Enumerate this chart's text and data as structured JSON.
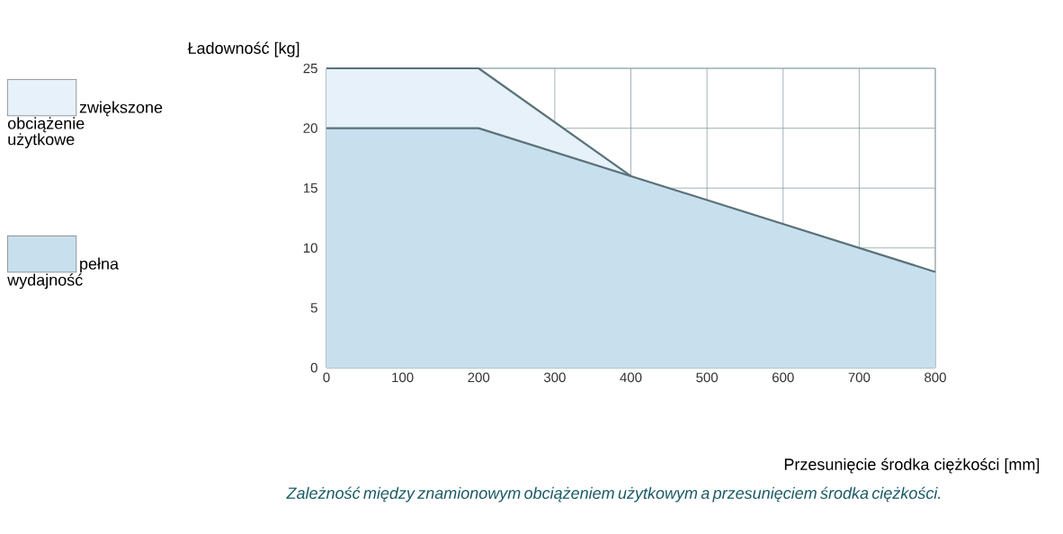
{
  "chart_data": {
    "type": "area",
    "ylabel": "Ładowność [kg]",
    "xlabel": "Przesunięcie środka ciężkości [mm]",
    "annotations": [
      "*Zależność między znamionowym obciążeniem użytkowym a przesunięciem środka ciężkości.*"
    ],
    "series": [
      {
        "name": "zwiększone obciążenie użytkowe",
        "color": "#e6f1f9",
        "x": [
          0,
          200,
          400
        ],
        "values": [
          25,
          25,
          16
        ]
      },
      {
        "name": "pełna wydajność",
        "color": "#c8e0ee",
        "x": [
          0,
          200,
          400,
          800
        ],
        "values": [
          20,
          20,
          16,
          8
        ]
      }
    ],
    "xlim": [
      0,
      800
    ],
    "xticks": [
      0,
      100,
      200,
      300,
      400,
      500,
      600,
      700,
      800
    ],
    "ylim": [
      0,
      25
    ],
    "yticks": [
      0,
      5,
      10,
      15,
      20,
      25
    ],
    "grid": true,
    "legend": "left"
  }
}
